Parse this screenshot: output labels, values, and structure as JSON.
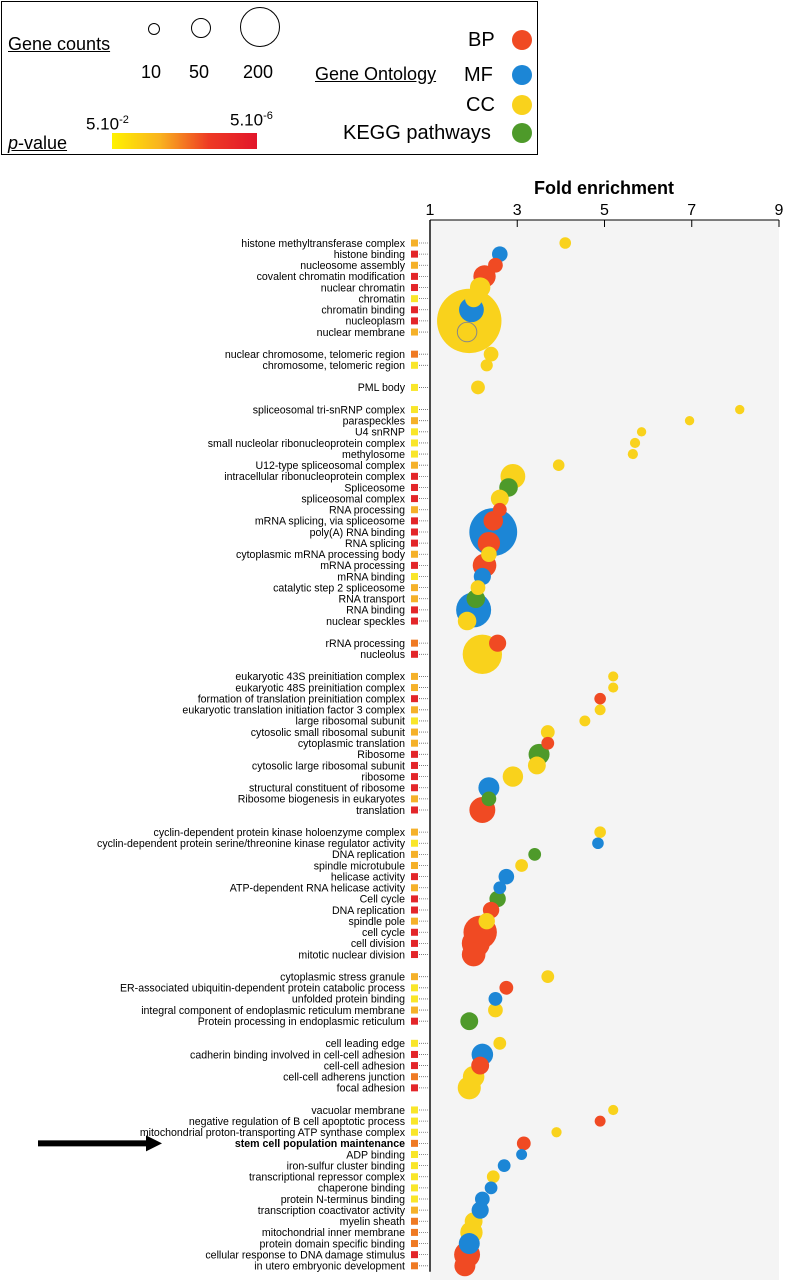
{
  "legend": {
    "gene_counts_label": "Gene counts",
    "gene_count_values": [
      "10",
      "50",
      "200"
    ],
    "pvalue_label_prefix": "p",
    "pvalue_label_suffix": "-value",
    "pvalue_low": "5.10",
    "pvalue_low_exp": "-2",
    "pvalue_high": "5.10",
    "pvalue_high_exp": "-6",
    "gene_ontology_label": "Gene Ontology",
    "categories": [
      {
        "label": "BP",
        "color": "#f04a23"
      },
      {
        "label": "MF",
        "color": "#1c86d6"
      },
      {
        "label": "CC",
        "color": "#f9d21c"
      },
      {
        "label": "KEGG pathways",
        "color": "#4e9a2a"
      }
    ]
  },
  "chart_data": {
    "type": "scatter",
    "xlabel": "Fold enrichment",
    "xticks": [
      1,
      3,
      5,
      7,
      9
    ],
    "xlim": [
      1,
      9
    ],
    "grid": false,
    "pvalue_colors": {
      "1": "#f9e62a",
      "2": "#f5b12a",
      "3": "#ef7a24",
      "4": "#e3262a"
    },
    "highlighted_term": "stem cell population maintenance",
    "rows": [
      {
        "label": "histone methyltransferase complex",
        "type": "CC",
        "fe": 4.1,
        "count": 6,
        "p": 2
      },
      {
        "label": "histone binding",
        "type": "MF",
        "fe": 2.6,
        "count": 14,
        "p": 4
      },
      {
        "label": "nucleosome assembly",
        "type": "BP",
        "fe": 2.5,
        "count": 12,
        "p": 2
      },
      {
        "label": "covalent chromatin modification",
        "type": "BP",
        "fe": 2.25,
        "count": 35,
        "p": 4
      },
      {
        "label": "nuclear chromatin",
        "type": "CC",
        "fe": 2.15,
        "count": 28,
        "p": 4
      },
      {
        "label": "chromatin",
        "type": "CC",
        "fe": 2.0,
        "count": 18,
        "p": 1
      },
      {
        "label": "chromatin binding",
        "type": "MF",
        "fe": 1.95,
        "count": 45,
        "p": 4
      },
      {
        "label": "nucleoplasm",
        "type": "CC",
        "fe": 1.9,
        "count": 380,
        "p": 4
      },
      {
        "label": "nuclear membrane",
        "type": "CC",
        "fe": 1.85,
        "count": 25,
        "p": 2,
        "hollow": true
      },
      {
        "gap": true
      },
      {
        "label": "nuclear chromosome, telomeric region",
        "type": "CC",
        "fe": 2.4,
        "count": 12,
        "p": 3
      },
      {
        "label": "chromosome, telomeric region",
        "type": "CC",
        "fe": 2.3,
        "count": 7,
        "p": 1
      },
      {
        "gap": true
      },
      {
        "label": "PML body",
        "type": "CC",
        "fe": 2.1,
        "count": 10,
        "p": 1
      },
      {
        "gap": true
      },
      {
        "label": "spliceosomal tri-snRNP complex",
        "type": "CC",
        "fe": 8.1,
        "count": 3,
        "p": 1
      },
      {
        "label": "paraspeckles",
        "type": "CC",
        "fe": 6.95,
        "count": 3,
        "p": 2
      },
      {
        "label": "U4 snRNP",
        "type": "CC",
        "fe": 5.85,
        "count": 3,
        "p": 1
      },
      {
        "label": "small nucleolar ribonucleoprotein complex",
        "type": "CC",
        "fe": 5.7,
        "count": 4,
        "p": 1
      },
      {
        "label": "methylosome",
        "type": "CC",
        "fe": 5.65,
        "count": 4,
        "p": 1
      },
      {
        "label": "U12-type spliceosomal complex",
        "type": "CC",
        "fe": 3.95,
        "count": 6,
        "p": 2
      },
      {
        "label": "intracellular ribonucleoprotein complex",
        "type": "CC",
        "fe": 2.9,
        "count": 45,
        "p": 4
      },
      {
        "label": "Spliceosome",
        "type": "KEGG",
        "fe": 2.8,
        "count": 22,
        "p": 4
      },
      {
        "label": "spliceosomal complex",
        "type": "CC",
        "fe": 2.6,
        "count": 20,
        "p": 4
      },
      {
        "label": "RNA processing",
        "type": "BP",
        "fe": 2.6,
        "count": 10,
        "p": 2
      },
      {
        "label": "mRNA splicing, via spliceosome",
        "type": "BP",
        "fe": 2.45,
        "count": 25,
        "p": 4
      },
      {
        "label": "poly(A) RNA binding",
        "type": "MF",
        "fe": 2.45,
        "count": 200,
        "p": 4
      },
      {
        "label": "RNA splicing",
        "type": "BP",
        "fe": 2.35,
        "count": 35,
        "p": 4
      },
      {
        "label": "cytoplasmic mRNA processing body",
        "type": "CC",
        "fe": 2.35,
        "count": 14,
        "p": 2
      },
      {
        "label": "mRNA processing",
        "type": "BP",
        "fe": 2.25,
        "count": 40,
        "p": 4
      },
      {
        "label": "mRNA binding",
        "type": "MF",
        "fe": 2.2,
        "count": 18,
        "p": 1
      },
      {
        "label": "catalytic step 2 spliceosome",
        "type": "CC",
        "fe": 2.1,
        "count": 12,
        "p": 2
      },
      {
        "label": "RNA transport",
        "type": "KEGG",
        "fe": 2.05,
        "count": 22,
        "p": 2
      },
      {
        "label": "RNA binding",
        "type": "MF",
        "fe": 2.0,
        "count": 100,
        "p": 4
      },
      {
        "label": "nuclear speckles",
        "type": "CC",
        "fe": 1.85,
        "count": 22,
        "p": 4
      },
      {
        "gap": true
      },
      {
        "label": "rRNA processing",
        "type": "BP",
        "fe": 2.55,
        "count": 18,
        "p": 3
      },
      {
        "label": "nucleolus",
        "type": "CC",
        "fe": 2.2,
        "count": 130,
        "p": 4
      },
      {
        "gap": true
      },
      {
        "label": "eukaryotic 43S preinitiation complex",
        "type": "CC",
        "fe": 5.2,
        "count": 4,
        "p": 2
      },
      {
        "label": "eukaryotic 48S preinitiation complex",
        "type": "CC",
        "fe": 5.2,
        "count": 4,
        "p": 2
      },
      {
        "label": "formation of translation preinitiation complex",
        "type": "BP",
        "fe": 4.9,
        "count": 6,
        "p": 4
      },
      {
        "label": "eukaryotic translation initiation factor 3 complex",
        "type": "CC",
        "fe": 4.9,
        "count": 5,
        "p": 2
      },
      {
        "label": "large ribosomal subunit",
        "type": "CC",
        "fe": 4.55,
        "count": 5,
        "p": 1
      },
      {
        "label": "cytosolic small ribosomal subunit",
        "type": "CC",
        "fe": 3.7,
        "count": 10,
        "p": 2
      },
      {
        "label": "cytoplasmic translation",
        "type": "BP",
        "fe": 3.7,
        "count": 8,
        "p": 2
      },
      {
        "label": "Ribosome",
        "type": "KEGG",
        "fe": 3.5,
        "count": 30,
        "p": 4
      },
      {
        "label": "cytosolic large ribosomal subunit",
        "type": "CC",
        "fe": 3.45,
        "count": 20,
        "p": 4
      },
      {
        "label": "ribosome",
        "type": "CC",
        "fe": 2.9,
        "count": 28,
        "p": 4
      },
      {
        "label": "structural constituent of ribosome",
        "type": "MF",
        "fe": 2.35,
        "count": 30,
        "p": 4
      },
      {
        "label": "Ribosome biogenesis in eukaryotes",
        "type": "KEGG",
        "fe": 2.35,
        "count": 12,
        "p": 2
      },
      {
        "label": "translation",
        "type": "BP",
        "fe": 2.2,
        "count": 50,
        "p": 4
      },
      {
        "gap": true
      },
      {
        "label": "cyclin-dependent protein kinase holoenzyme complex",
        "type": "CC",
        "fe": 4.9,
        "count": 6,
        "p": 2
      },
      {
        "label": "cyclin-dependent protein serine/threonine kinase regulator activity",
        "type": "MF",
        "fe": 4.85,
        "count": 6,
        "p": 1
      },
      {
        "label": "DNA replication",
        "type": "KEGG",
        "fe": 3.4,
        "count": 8,
        "p": 2
      },
      {
        "label": "spindle microtubule",
        "type": "CC",
        "fe": 3.1,
        "count": 8,
        "p": 2
      },
      {
        "label": "helicase activity",
        "type": "MF",
        "fe": 2.75,
        "count": 14,
        "p": 4
      },
      {
        "label": "ATP-dependent RNA helicase activity",
        "type": "MF",
        "fe": 2.6,
        "count": 8,
        "p": 2
      },
      {
        "label": "Cell cycle",
        "type": "KEGG",
        "fe": 2.55,
        "count": 16,
        "p": 4
      },
      {
        "label": "DNA replication",
        "type": "BP",
        "fe": 2.4,
        "count": 16,
        "p": 4
      },
      {
        "label": "spindle pole",
        "type": "CC",
        "fe": 2.3,
        "count": 16,
        "p": 2
      },
      {
        "label": "cell cycle",
        "type": "BP",
        "fe": 2.15,
        "count": 90,
        "p": 4
      },
      {
        "label": "cell division",
        "type": "BP",
        "fe": 2.05,
        "count": 60,
        "p": 4
      },
      {
        "label": "mitotic nuclear division",
        "type": "BP",
        "fe": 2.0,
        "count": 40,
        "p": 4
      },
      {
        "gap": true
      },
      {
        "label": "cytoplasmic stress granule",
        "type": "CC",
        "fe": 3.7,
        "count": 8,
        "p": 2
      },
      {
        "label": "ER-associated ubiquitin-dependent protein catabolic process",
        "type": "BP",
        "fe": 2.75,
        "count": 10,
        "p": 1
      },
      {
        "label": "unfolded protein binding",
        "type": "MF",
        "fe": 2.5,
        "count": 10,
        "p": 1
      },
      {
        "label": "integral component of endoplasmic reticulum membrane",
        "type": "CC",
        "fe": 2.5,
        "count": 12,
        "p": 2
      },
      {
        "label": "Protein processing in endoplasmic reticulum",
        "type": "KEGG",
        "fe": 1.9,
        "count": 20,
        "p": 4
      },
      {
        "gap": true
      },
      {
        "label": "cell leading edge",
        "type": "CC",
        "fe": 2.6,
        "count": 8,
        "p": 1
      },
      {
        "label": "cadherin binding involved in cell-cell adhesion",
        "type": "MF",
        "fe": 2.2,
        "count": 32,
        "p": 4
      },
      {
        "label": "cell-cell adhesion",
        "type": "BP",
        "fe": 2.15,
        "count": 20,
        "p": 4
      },
      {
        "label": "cell-cell adherens junction",
        "type": "CC",
        "fe": 2.0,
        "count": 32,
        "p": 3
      },
      {
        "label": "focal adhesion",
        "type": "CC",
        "fe": 1.9,
        "count": 38,
        "p": 4
      },
      {
        "gap": true
      },
      {
        "label": "vacuolar membrane",
        "type": "CC",
        "fe": 5.2,
        "count": 4,
        "p": 1
      },
      {
        "label": "negative regulation of B cell apoptotic process",
        "type": "BP",
        "fe": 4.9,
        "count": 5,
        "p": 1
      },
      {
        "label": "mitochondrial proton-transporting ATP synthase complex",
        "type": "CC",
        "fe": 3.9,
        "count": 4,
        "p": 1
      },
      {
        "label": "stem cell population maintenance",
        "type": "BP",
        "fe": 3.15,
        "count": 10,
        "p": 3
      },
      {
        "label": "ADP binding",
        "type": "MF",
        "fe": 3.1,
        "count": 5,
        "p": 1
      },
      {
        "label": "iron-sulfur cluster binding",
        "type": "MF",
        "fe": 2.7,
        "count": 8,
        "p": 1
      },
      {
        "label": "transcriptional repressor complex",
        "type": "CC",
        "fe": 2.45,
        "count": 8,
        "p": 1
      },
      {
        "label": "chaperone binding",
        "type": "MF",
        "fe": 2.4,
        "count": 8,
        "p": 1
      },
      {
        "label": "protein N-terminus binding",
        "type": "MF",
        "fe": 2.2,
        "count": 12,
        "p": 1
      },
      {
        "label": "transcription coactivator activity",
        "type": "MF",
        "fe": 2.15,
        "count": 18,
        "p": 2
      },
      {
        "label": "myelin sheath",
        "type": "CC",
        "fe": 2.0,
        "count": 20,
        "p": 3
      },
      {
        "label": "mitochondrial inner membrane",
        "type": "CC",
        "fe": 1.95,
        "count": 35,
        "p": 3
      },
      {
        "label": "protein domain specific binding",
        "type": "MF",
        "fe": 1.9,
        "count": 30,
        "p": 3
      },
      {
        "label": "cellular response to DNA damage stimulus",
        "type": "BP",
        "fe": 1.85,
        "count": 50,
        "p": 4
      },
      {
        "label": "in utero embryonic development",
        "type": "BP",
        "fe": 1.8,
        "count": 30,
        "p": 3
      }
    ]
  }
}
